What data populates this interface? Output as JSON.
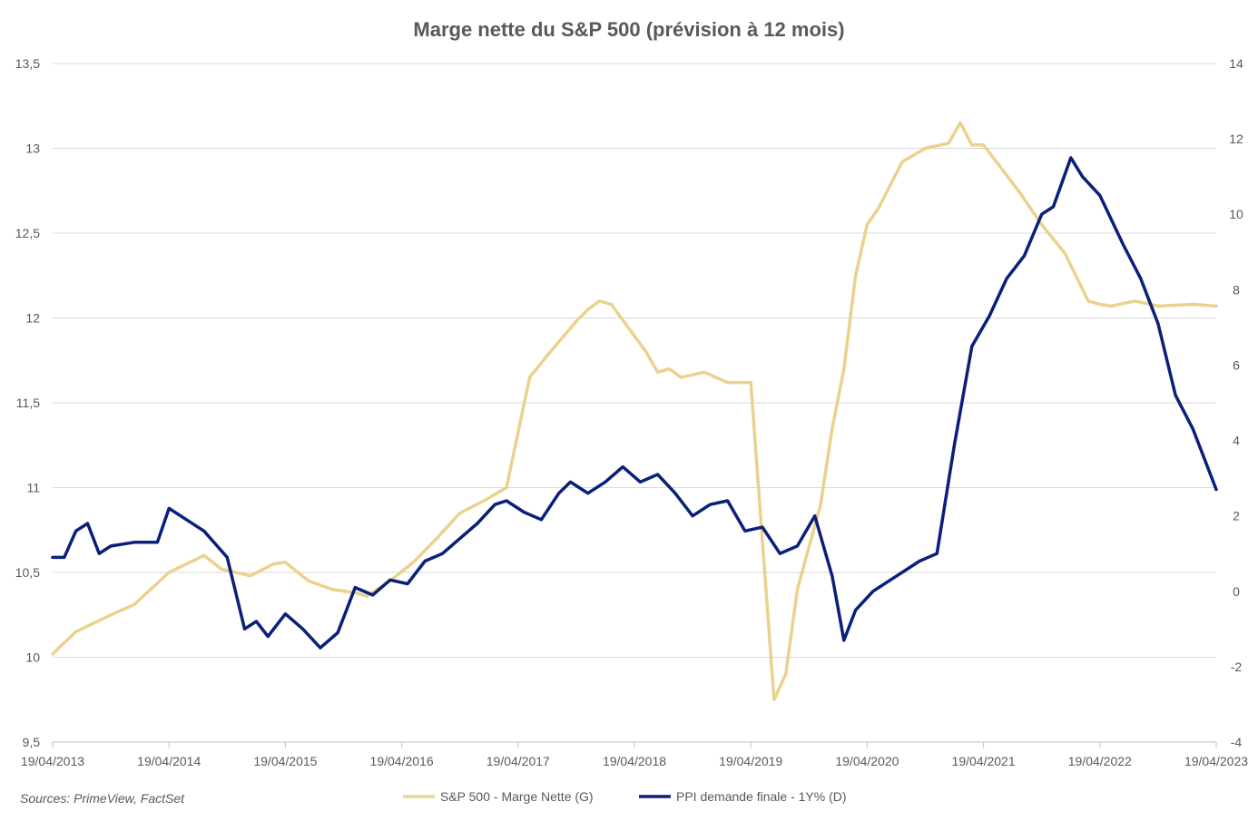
{
  "chart_data": {
    "type": "line",
    "title": "Marge nette du S&P 500 (prévision à 12 mois)",
    "source": "Sources: PrimeView, FactSet",
    "x_ticks": [
      "19/04/2013",
      "19/04/2014",
      "19/04/2015",
      "19/04/2016",
      "19/04/2017",
      "19/04/2018",
      "19/04/2019",
      "19/04/2020",
      "19/04/2021",
      "19/04/2022",
      "19/04/2023"
    ],
    "y_left": {
      "min": 9.5,
      "max": 13.5,
      "ticks": [
        "9,5",
        "10",
        "10,5",
        "11",
        "11,5",
        "12",
        "12,5",
        "13",
        "13,5"
      ]
    },
    "y_right": {
      "min": -4,
      "max": 14,
      "ticks": [
        "-4",
        "-2",
        "0",
        "2",
        "4",
        "6",
        "8",
        "10",
        "12",
        "14"
      ]
    },
    "grid": "horizontal",
    "legend_position": "bottom",
    "colors": {
      "margin": "#EAD28E",
      "ppi": "#0B1F7A",
      "grid": "#D9D9D9",
      "text": "#595959"
    },
    "series": [
      {
        "name": "S&P 500 - Marge Nette (G)",
        "axis": "left",
        "x": [
          2013.3,
          2013.5,
          2013.8,
          2014.0,
          2014.3,
          2014.6,
          2014.75,
          2015.0,
          2015.2,
          2015.3,
          2015.5,
          2015.7,
          2015.9,
          2016.0,
          2016.2,
          2016.4,
          2016.6,
          2016.8,
          2017.0,
          2017.2,
          2017.4,
          2017.6,
          2017.7,
          2017.75,
          2017.8,
          2017.9,
          2018.0,
          2018.1,
          2018.4,
          2018.5,
          2018.6,
          2018.7,
          2018.9,
          2019.1,
          2019.3,
          2019.5,
          2019.6,
          2019.7,
          2019.9,
          2020.0,
          2020.1,
          2020.2,
          2020.3,
          2020.4,
          2020.6,
          2020.8,
          2021.0,
          2021.1,
          2021.2,
          2021.3,
          2021.6,
          2021.8,
          2022.0,
          2022.2,
          2022.3,
          2022.4,
          2022.6,
          2022.8,
          2023.1,
          2023.3
        ],
        "y": [
          10.02,
          10.15,
          10.25,
          10.31,
          10.5,
          10.6,
          10.52,
          10.48,
          10.55,
          10.56,
          10.45,
          10.4,
          10.38,
          10.36,
          10.45,
          10.56,
          10.7,
          10.85,
          10.92,
          11.0,
          11.65,
          11.82,
          11.9,
          11.94,
          11.98,
          12.05,
          12.1,
          12.08,
          11.8,
          11.68,
          11.7,
          11.65,
          11.68,
          11.62,
          11.62,
          9.75,
          9.9,
          10.4,
          10.9,
          11.35,
          11.7,
          12.25,
          12.55,
          12.65,
          12.92,
          13.0,
          13.03,
          13.15,
          13.02,
          13.02,
          12.75,
          12.55,
          12.38,
          12.1,
          12.08,
          12.07,
          12.1,
          12.07,
          12.08,
          12.07
        ]
      },
      {
        "name": "PPI demande finale - 1Y% (D)",
        "axis": "right",
        "x": [
          2013.3,
          2013.4,
          2013.5,
          2013.6,
          2013.7,
          2013.8,
          2014.0,
          2014.2,
          2014.3,
          2014.45,
          2014.6,
          2014.8,
          2014.95,
          2015.05,
          2015.15,
          2015.3,
          2015.45,
          2015.6,
          2015.75,
          2015.9,
          2016.05,
          2016.2,
          2016.35,
          2016.5,
          2016.65,
          2016.8,
          2016.95,
          2017.1,
          2017.2,
          2017.35,
          2017.5,
          2017.65,
          2017.75,
          2017.9,
          2018.05,
          2018.2,
          2018.35,
          2018.5,
          2018.65,
          2018.8,
          2018.95,
          2019.1,
          2019.25,
          2019.4,
          2019.55,
          2019.7,
          2019.85,
          2020.0,
          2020.1,
          2020.2,
          2020.35,
          2020.55,
          2020.75,
          2020.9,
          2021.05,
          2021.2,
          2021.35,
          2021.5,
          2021.65,
          2021.8,
          2021.9,
          2022.05,
          2022.15,
          2022.3,
          2022.5,
          2022.65,
          2022.8,
          2022.95,
          2023.1,
          2023.3
        ],
        "y": [
          0.9,
          0.9,
          1.6,
          1.8,
          1.0,
          1.2,
          1.3,
          1.3,
          2.2,
          1.9,
          1.6,
          0.9,
          -1.0,
          -0.8,
          -1.2,
          -0.6,
          -1.0,
          -1.5,
          -1.1,
          0.1,
          -0.1,
          0.3,
          0.2,
          0.8,
          1.0,
          1.4,
          1.8,
          2.3,
          2.4,
          2.1,
          1.9,
          2.6,
          2.9,
          2.6,
          2.9,
          3.3,
          2.9,
          3.1,
          2.6,
          2.0,
          2.3,
          2.4,
          1.6,
          1.7,
          1.0,
          1.2,
          2.0,
          0.4,
          -1.3,
          -0.5,
          0.0,
          0.4,
          0.8,
          1.0,
          3.9,
          6.5,
          7.3,
          8.3,
          8.9,
          10.0,
          10.2,
          11.5,
          11.0,
          10.5,
          9.2,
          8.3,
          7.1,
          5.2,
          4.3,
          2.7
        ]
      }
    ]
  }
}
